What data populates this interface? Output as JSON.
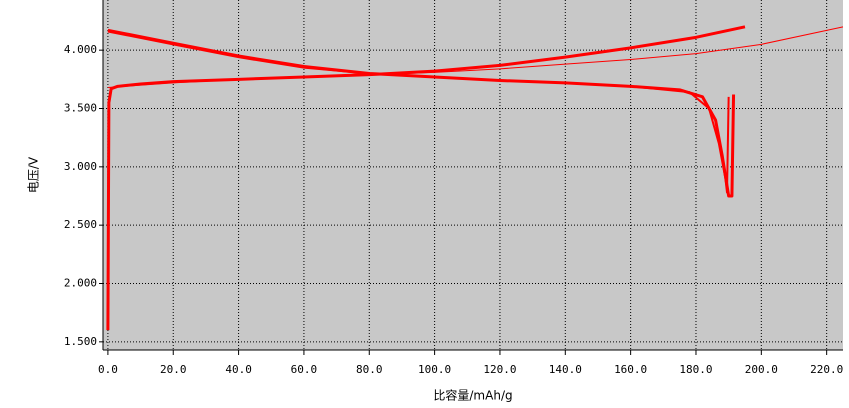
{
  "chart_data": {
    "type": "line",
    "x_label": "比容量/mAh/g",
    "y_label": "电压/V",
    "xlim": [
      -1.5,
      225
    ],
    "ylim": [
      1.43,
      4.43
    ],
    "xticks": [
      {
        "value": 0,
        "label": "0.0"
      },
      {
        "value": 20,
        "label": "20.0"
      },
      {
        "value": 40,
        "label": "40.0"
      },
      {
        "value": 60,
        "label": "60.0"
      },
      {
        "value": 80,
        "label": "80.0"
      },
      {
        "value": 100,
        "label": "100.0"
      },
      {
        "value": 120,
        "label": "120.0"
      },
      {
        "value": 140,
        "label": "140.0"
      },
      {
        "value": 160,
        "label": "160.0"
      },
      {
        "value": 180,
        "label": "180.0"
      },
      {
        "value": 200,
        "label": "200.0"
      },
      {
        "value": 220,
        "label": "220.0"
      }
    ],
    "yticks": [
      {
        "value": 1.5,
        "label": "1.500"
      },
      {
        "value": 2,
        "label": "2.000"
      },
      {
        "value": 2.5,
        "label": "2.500"
      },
      {
        "value": 3,
        "label": "3.000"
      },
      {
        "value": 3.5,
        "label": "3.500"
      },
      {
        "value": 4,
        "label": "4.000"
      }
    ],
    "grid": true,
    "plot_background": "#c8c8c8",
    "series": [
      {
        "color": "#ff0000",
        "line_width": 3,
        "x": [
          0,
          0.3,
          1,
          3,
          10,
          20,
          40,
          60,
          80,
          100,
          120,
          140,
          160,
          180,
          190,
          195
        ],
        "values": [
          1.6,
          3.55,
          3.67,
          3.69,
          3.71,
          3.73,
          3.75,
          3.77,
          3.79,
          3.82,
          3.87,
          3.94,
          4.02,
          4.11,
          4.17,
          4.2
        ]
      },
      {
        "color": "#ff0000",
        "line_width": 3,
        "x": [
          0,
          20,
          40,
          60,
          80,
          100,
          120,
          140,
          160,
          175,
          182,
          186,
          188,
          190,
          191,
          191.5
        ],
        "values": [
          4.17,
          4.06,
          3.95,
          3.86,
          3.8,
          3.77,
          3.74,
          3.72,
          3.69,
          3.66,
          3.6,
          3.4,
          3.1,
          2.75,
          2.75,
          3.62
        ]
      },
      {
        "color": "#ff0000",
        "line_width": 2,
        "x": [
          0,
          20,
          40,
          60,
          80,
          100,
          120,
          140,
          160,
          178,
          184,
          187,
          189,
          189.5,
          190
        ],
        "values": [
          4.16,
          4.05,
          3.94,
          3.85,
          3.8,
          3.77,
          3.74,
          3.72,
          3.69,
          3.64,
          3.5,
          3.2,
          2.9,
          2.78,
          3.6
        ]
      },
      {
        "color": "#ff0000",
        "line_width": 1,
        "x": [
          0,
          20,
          40,
          60,
          80,
          100,
          120,
          140,
          160,
          180,
          200,
          225
        ],
        "values": [
          3.68,
          3.72,
          3.75,
          3.77,
          3.79,
          3.81,
          3.84,
          3.88,
          3.92,
          3.97,
          4.05,
          4.2
        ]
      }
    ]
  }
}
